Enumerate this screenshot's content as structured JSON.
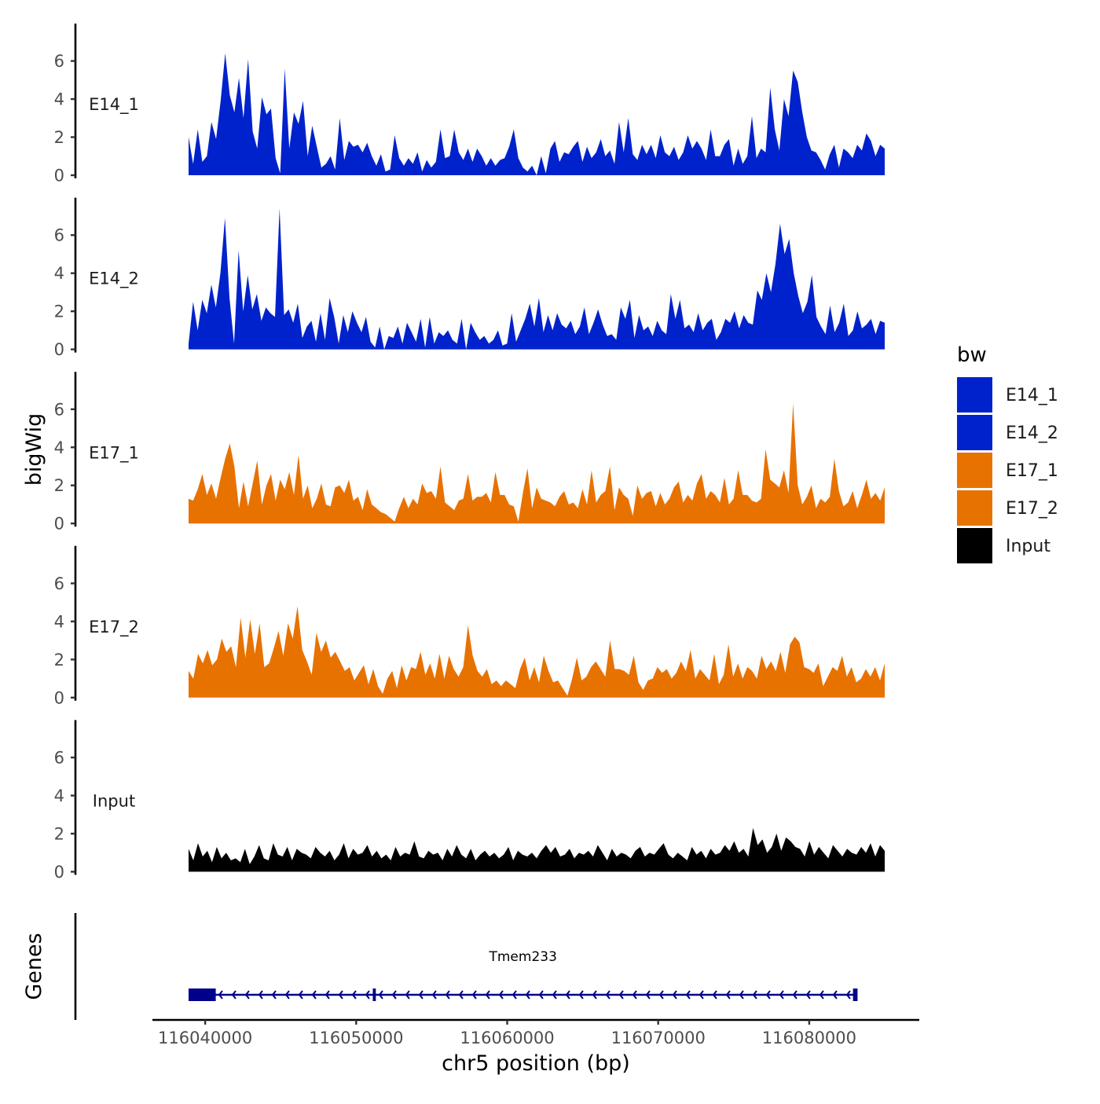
{
  "chart_data": {
    "type": "area",
    "y_axis_title": "bigWig",
    "x_axis_title": "chr5 position (bp)",
    "genes_panel_title": "Genes",
    "legend": {
      "title": "bw",
      "entries": [
        {
          "label": "E14_1",
          "color": "#0022CC"
        },
        {
          "label": "E14_2",
          "color": "#0022CC"
        },
        {
          "label": "E17_1",
          "color": "#E87200"
        },
        {
          "label": "E17_2",
          "color": "#E87200"
        },
        {
          "label": "Input",
          "color": "#000000"
        }
      ]
    },
    "ylim": [
      0,
      7.8
    ],
    "y_ticks": [
      0,
      2,
      4,
      6
    ],
    "x_range": [
      116038900,
      116085000
    ],
    "x_ticks": [
      116040000,
      116050000,
      116060000,
      116070000,
      116080000
    ],
    "x_tick_labels": [
      "116040000",
      "116050000",
      "116060000",
      "116070000",
      "116080000"
    ],
    "tracks": [
      {
        "name": "E14_1",
        "color": "#0022CC",
        "start": 116038900,
        "end": 116085000,
        "values": [
          2.0,
          0.6,
          2.4,
          0.7,
          1.0,
          2.8,
          1.9,
          3.9,
          6.4,
          4.2,
          3.3,
          5.1,
          3.0,
          6.1,
          2.3,
          1.4,
          4.1,
          3.2,
          3.5,
          0.9,
          0.1,
          5.6,
          1.4,
          3.3,
          2.7,
          3.9,
          1.0,
          2.6,
          1.5,
          0.4,
          0.6,
          1.0,
          0.3,
          3.0,
          0.8,
          1.8,
          1.5,
          1.6,
          1.2,
          1.7,
          1.0,
          0.5,
          1.1,
          0.2,
          0.3,
          2.1,
          0.9,
          0.5,
          0.9,
          0.6,
          1.2,
          0.2,
          0.8,
          0.4,
          0.7,
          2.4,
          0.9,
          1.0,
          2.4,
          1.2,
          0.8,
          1.4,
          0.7,
          1.4,
          1.0,
          0.5,
          0.9,
          0.5,
          0.8,
          0.9,
          1.5,
          2.4,
          0.9,
          0.4,
          0.2,
          0.5,
          0.0,
          1.0,
          0.1,
          1.4,
          1.8,
          0.7,
          1.2,
          1.1,
          1.5,
          1.8,
          0.7,
          1.5,
          0.9,
          1.2,
          1.9,
          1.0,
          1.3,
          0.6,
          2.8,
          1.2,
          3.0,
          1.1,
          0.8,
          1.6,
          1.1,
          1.6,
          0.9,
          2.1,
          1.2,
          1.0,
          1.5,
          0.8,
          1.2,
          2.1,
          1.4,
          1.8,
          1.4,
          0.8,
          2.4,
          1.0,
          1.0,
          1.6,
          1.9,
          0.5,
          1.4,
          0.6,
          1.0,
          3.1,
          0.9,
          1.4,
          1.2,
          4.6,
          2.4,
          1.3,
          4.0,
          3.1,
          5.5,
          4.9,
          3.3,
          2.0,
          1.3,
          1.2,
          0.8,
          0.3,
          1.1,
          1.6,
          0.4,
          1.4,
          1.2,
          0.9,
          1.6,
          1.3,
          2.2,
          1.8,
          1.0,
          1.6,
          1.4
        ]
      },
      {
        "name": "E14_2",
        "color": "#0022CC",
        "start": 116038900,
        "end": 116085000,
        "values": [
          0.3,
          2.5,
          1.0,
          2.6,
          1.9,
          3.4,
          2.2,
          4.0,
          6.9,
          2.7,
          0.3,
          5.2,
          2.0,
          3.9,
          2.1,
          2.9,
          1.5,
          2.2,
          1.9,
          1.7,
          7.4,
          1.8,
          2.1,
          1.4,
          2.4,
          0.6,
          1.2,
          1.5,
          0.4,
          1.9,
          0.5,
          2.7,
          1.7,
          0.3,
          1.8,
          0.9,
          2.0,
          1.4,
          0.9,
          1.7,
          0.4,
          0.1,
          1.2,
          0.0,
          0.7,
          0.6,
          1.2,
          0.3,
          1.4,
          0.9,
          0.4,
          1.6,
          0.1,
          1.7,
          0.3,
          0.9,
          0.7,
          1.0,
          0.5,
          0.3,
          1.6,
          0.0,
          1.4,
          0.9,
          0.5,
          0.7,
          0.3,
          0.5,
          1.0,
          0.2,
          0.3,
          1.9,
          0.4,
          1.0,
          1.6,
          2.4,
          1.2,
          2.7,
          0.9,
          1.8,
          1.0,
          1.9,
          1.3,
          1.1,
          1.5,
          0.8,
          1.2,
          2.2,
          0.8,
          1.4,
          2.1,
          1.3,
          0.7,
          0.8,
          0.5,
          2.2,
          1.6,
          2.6,
          0.6,
          1.8,
          1.0,
          1.2,
          0.7,
          1.5,
          1.0,
          0.8,
          2.9,
          1.6,
          2.6,
          1.1,
          1.3,
          0.9,
          1.9,
          1.0,
          1.4,
          1.6,
          0.5,
          0.9,
          1.6,
          1.4,
          2.0,
          1.1,
          1.8,
          1.4,
          1.3,
          3.1,
          2.6,
          4.0,
          3.0,
          4.5,
          6.6,
          5.0,
          5.8,
          4.0,
          2.8,
          1.9,
          2.5,
          3.9,
          1.7,
          1.2,
          0.8,
          2.3,
          0.9,
          1.4,
          2.4,
          0.7,
          1.0,
          2.0,
          1.1,
          1.3,
          1.6,
          0.8,
          1.5,
          1.4
        ]
      },
      {
        "name": "E17_1",
        "color": "#E87200",
        "start": 116038900,
        "end": 116085000,
        "values": [
          1.3,
          1.2,
          1.8,
          2.6,
          1.5,
          2.1,
          1.3,
          2.4,
          3.4,
          4.2,
          3.0,
          0.8,
          2.2,
          0.9,
          2.1,
          3.3,
          1.0,
          2.0,
          2.6,
          1.2,
          2.3,
          1.8,
          2.7,
          1.5,
          3.6,
          1.3,
          2.0,
          0.8,
          1.3,
          2.1,
          1.0,
          0.9,
          1.9,
          2.0,
          1.6,
          2.3,
          1.2,
          1.4,
          0.7,
          1.8,
          1.0,
          0.8,
          0.6,
          0.5,
          0.3,
          0.1,
          0.8,
          1.4,
          0.8,
          1.3,
          1.0,
          2.1,
          1.6,
          1.7,
          1.3,
          3.0,
          1.1,
          0.9,
          0.7,
          1.2,
          1.3,
          2.6,
          1.2,
          1.4,
          1.4,
          1.6,
          1.1,
          2.7,
          1.5,
          1.5,
          1.0,
          0.9,
          0.1,
          1.6,
          2.9,
          0.8,
          1.9,
          1.3,
          1.2,
          1.1,
          0.9,
          1.4,
          1.7,
          1.0,
          1.1,
          0.8,
          1.8,
          1.0,
          2.8,
          1.1,
          1.5,
          1.7,
          3.0,
          0.7,
          1.9,
          1.5,
          1.3,
          0.4,
          2.0,
          1.3,
          1.6,
          1.7,
          0.9,
          1.6,
          1.0,
          1.3,
          1.9,
          2.2,
          1.1,
          1.5,
          1.2,
          2.1,
          2.6,
          1.3,
          1.7,
          1.5,
          1.1,
          2.4,
          1.0,
          1.3,
          2.8,
          1.5,
          1.5,
          1.2,
          1.1,
          1.3,
          3.9,
          2.3,
          2.1,
          1.9,
          2.8,
          1.6,
          6.3,
          2.0,
          1.0,
          1.4,
          2.0,
          0.8,
          1.3,
          1.1,
          1.4,
          3.4,
          1.7,
          0.9,
          1.1,
          1.7,
          0.8,
          1.5,
          2.3,
          1.3,
          1.6,
          1.2,
          1.9
        ]
      },
      {
        "name": "E17_2",
        "color": "#E87200",
        "start": 116038900,
        "end": 116085000,
        "values": [
          1.4,
          1.0,
          2.3,
          1.8,
          2.5,
          1.7,
          2.0,
          3.1,
          2.4,
          2.7,
          1.6,
          4.2,
          2.1,
          4.1,
          2.3,
          3.9,
          1.6,
          1.8,
          2.6,
          3.5,
          2.2,
          3.9,
          3.1,
          4.8,
          2.5,
          1.9,
          1.2,
          3.4,
          2.4,
          3.0,
          2.1,
          2.4,
          1.9,
          1.4,
          1.6,
          0.9,
          1.3,
          1.7,
          0.7,
          1.5,
          0.6,
          0.2,
          1.0,
          1.4,
          0.5,
          1.7,
          0.9,
          1.6,
          1.5,
          2.4,
          1.2,
          1.8,
          1.0,
          2.3,
          1.0,
          2.2,
          1.5,
          1.1,
          1.6,
          3.8,
          2.2,
          1.4,
          1.1,
          1.5,
          0.7,
          0.9,
          0.6,
          0.9,
          0.7,
          0.5,
          1.5,
          2.1,
          0.9,
          1.6,
          0.8,
          2.2,
          1.4,
          0.8,
          0.9,
          0.5,
          0.1,
          1.0,
          2.1,
          0.9,
          1.1,
          1.6,
          1.9,
          1.5,
          1.1,
          3.0,
          1.5,
          1.5,
          1.4,
          1.2,
          2.2,
          0.8,
          0.4,
          0.9,
          1.0,
          1.6,
          1.3,
          1.5,
          1.0,
          1.3,
          1.9,
          1.4,
          2.5,
          1.0,
          1.5,
          1.2,
          0.9,
          2.3,
          0.7,
          1.2,
          2.8,
          1.1,
          1.8,
          1.0,
          1.6,
          1.4,
          1.0,
          2.2,
          1.5,
          1.9,
          1.4,
          2.4,
          1.3,
          2.8,
          3.2,
          2.9,
          1.6,
          1.5,
          1.3,
          1.8,
          0.6,
          1.1,
          1.6,
          1.4,
          2.2,
          1.1,
          1.6,
          0.8,
          1.0,
          1.5,
          1.1,
          1.6,
          0.9,
          1.8
        ]
      },
      {
        "name": "Input",
        "color": "#000000",
        "start": 116038900,
        "end": 116085000,
        "values": [
          1.2,
          0.6,
          1.5,
          0.8,
          1.1,
          0.5,
          1.3,
          0.7,
          1.0,
          0.6,
          0.7,
          0.5,
          1.2,
          0.4,
          0.8,
          1.4,
          0.7,
          0.6,
          1.5,
          0.9,
          0.8,
          1.3,
          0.6,
          1.2,
          1.0,
          0.9,
          0.7,
          1.3,
          1.0,
          0.8,
          1.1,
          0.6,
          0.9,
          1.5,
          0.7,
          1.2,
          0.9,
          1.0,
          1.4,
          0.8,
          1.1,
          0.7,
          0.9,
          0.6,
          1.3,
          0.8,
          1.0,
          0.9,
          1.6,
          0.8,
          0.7,
          1.1,
          0.9,
          1.0,
          0.6,
          1.2,
          0.8,
          1.4,
          0.9,
          0.7,
          1.2,
          0.6,
          0.9,
          1.1,
          0.8,
          1.0,
          0.7,
          0.9,
          1.3,
          0.6,
          1.1,
          0.9,
          0.8,
          1.0,
          0.7,
          1.1,
          1.4,
          1.0,
          1.3,
          0.8,
          0.9,
          1.2,
          0.7,
          1.0,
          0.9,
          1.1,
          0.8,
          1.4,
          1.0,
          0.6,
          1.2,
          0.8,
          1.0,
          0.9,
          0.7,
          1.1,
          1.3,
          0.8,
          1.0,
          0.9,
          1.2,
          1.5,
          0.9,
          0.7,
          1.0,
          0.8,
          0.6,
          1.3,
          0.9,
          1.1,
          0.7,
          1.2,
          0.9,
          1.0,
          1.4,
          1.1,
          1.6,
          1.0,
          1.2,
          0.8,
          2.3,
          1.4,
          1.7,
          1.0,
          1.3,
          2.0,
          1.1,
          1.8,
          1.6,
          1.3,
          1.2,
          0.8,
          1.6,
          0.9,
          1.3,
          1.0,
          0.7,
          1.4,
          1.1,
          0.8,
          1.2,
          1.0,
          0.9,
          1.3,
          1.0,
          1.5,
          0.8,
          1.4,
          1.1
        ]
      }
    ],
    "genes": [
      {
        "name": "Tmem233",
        "strand": "-",
        "start": 116038900,
        "end": 116083200,
        "exons": [
          {
            "start": 116038900,
            "end": 116040700
          },
          {
            "start": 116051100,
            "end": 116051300
          },
          {
            "start": 116082900,
            "end": 116083200
          }
        ],
        "color": "#00008B"
      }
    ]
  }
}
